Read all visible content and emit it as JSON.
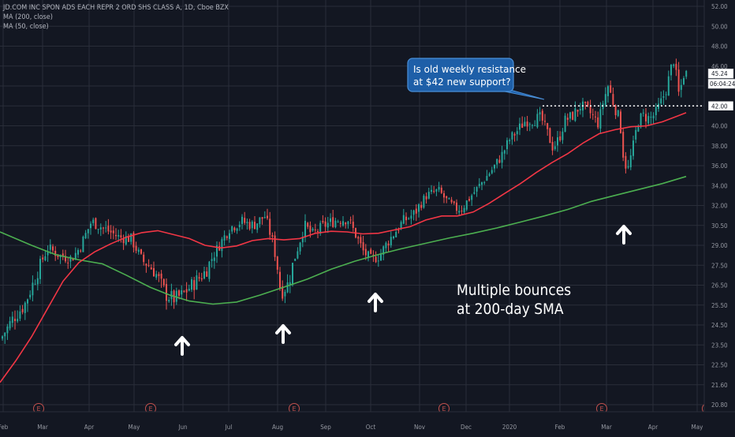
{
  "chart_data": {
    "type": "candlestick",
    "title": "JD.COM INC SPON ADS EACH REPR 2 ORD SHS CLASS A, 1D, Cboe BZX",
    "indicators": [
      "MA (200, close)",
      "MA (50, close)"
    ],
    "y_axis": {
      "ticks": [
        "52.00",
        "50.00",
        "48.00",
        "46.00",
        "44.00",
        "42.00",
        "40.00",
        "38.00",
        "36.00",
        "34.00",
        "32.00",
        "30.50",
        "29.00",
        "27.50",
        "26.50",
        "25.50",
        "24.50",
        "23.50",
        "22.50",
        "21.60",
        "20.80"
      ],
      "scale": "log",
      "ylim": [
        20.4,
        52.5
      ],
      "position": "right"
    },
    "x_axis": {
      "ticks": [
        "Feb",
        "Mar",
        "Apr",
        "May",
        "Jun",
        "Jul",
        "Aug",
        "Sep",
        "Oct",
        "Nov",
        "Dec",
        "2020",
        "Feb",
        "Mar",
        "Apr",
        "May"
      ]
    },
    "price_labels": {
      "last_price": "45.24",
      "countdown": "06:04:24",
      "level": "42.00"
    },
    "resistance_level": 42.0,
    "annotations": {
      "callout": "Is old weekly resistance at $42 new support?",
      "callout_lines": [
        "Is old weekly resistance",
        "at $42 new support?"
      ],
      "bounces_lines": [
        "Multiple bounces",
        "at 200-day SMA"
      ]
    },
    "bounce_arrows": 4,
    "earnings_marker": "E",
    "earnings_markers": 6,
    "series_colors": {
      "up": "#26a69a",
      "down": "#ef5350",
      "ma200": "#4caf50",
      "ma50": "#f23645"
    },
    "ma200": [
      [
        0,
        30.0
      ],
      [
        40,
        29.0
      ],
      [
        70,
        28.3
      ],
      [
        100,
        27.9
      ],
      [
        130,
        27.6
      ],
      [
        160,
        27.0
      ],
      [
        190,
        26.4
      ],
      [
        215,
        26.0
      ],
      [
        240,
        25.7
      ],
      [
        270,
        25.55
      ],
      [
        300,
        25.65
      ],
      [
        330,
        26.0
      ],
      [
        360,
        26.4
      ],
      [
        390,
        26.8
      ],
      [
        420,
        27.3
      ],
      [
        450,
        27.8
      ],
      [
        480,
        28.3
      ],
      [
        510,
        28.75
      ],
      [
        540,
        29.15
      ],
      [
        570,
        29.55
      ],
      [
        600,
        29.9
      ],
      [
        630,
        30.3
      ],
      [
        660,
        30.75
      ],
      [
        690,
        31.2
      ],
      [
        720,
        31.7
      ],
      [
        750,
        32.4
      ],
      [
        780,
        33.0
      ],
      [
        810,
        33.6
      ],
      [
        840,
        34.2
      ],
      [
        870,
        34.9
      ]
    ],
    "ma50": [
      [
        0,
        21.7
      ],
      [
        20,
        22.7
      ],
      [
        40,
        23.9
      ],
      [
        60,
        25.3
      ],
      [
        80,
        26.7
      ],
      [
        100,
        27.7
      ],
      [
        120,
        28.5
      ],
      [
        140,
        29.1
      ],
      [
        160,
        29.6
      ],
      [
        180,
        29.95
      ],
      [
        200,
        30.1
      ],
      [
        220,
        29.8
      ],
      [
        240,
        29.5
      ],
      [
        260,
        29.0
      ],
      [
        280,
        28.8
      ],
      [
        300,
        28.95
      ],
      [
        320,
        29.35
      ],
      [
        340,
        29.5
      ],
      [
        360,
        29.4
      ],
      [
        380,
        29.5
      ],
      [
        400,
        29.9
      ],
      [
        420,
        30.05
      ],
      [
        440,
        30.0
      ],
      [
        460,
        29.85
      ],
      [
        480,
        29.9
      ],
      [
        500,
        30.15
      ],
      [
        520,
        30.4
      ],
      [
        540,
        30.9
      ],
      [
        560,
        31.2
      ],
      [
        580,
        31.2
      ],
      [
        600,
        31.5
      ],
      [
        620,
        32.2
      ],
      [
        640,
        33.2
      ],
      [
        660,
        34.2
      ],
      [
        680,
        35.3
      ],
      [
        700,
        36.3
      ],
      [
        720,
        37.2
      ],
      [
        740,
        38.3
      ],
      [
        760,
        39.2
      ],
      [
        780,
        39.6
      ],
      [
        800,
        39.9
      ],
      [
        820,
        40.0
      ],
      [
        840,
        40.4
      ],
      [
        860,
        41.0
      ],
      [
        870,
        41.3
      ]
    ],
    "price_path": [
      [
        0,
        23.8
      ],
      [
        15,
        24.8
      ],
      [
        30,
        25.5
      ],
      [
        45,
        27.0
      ],
      [
        60,
        28.8
      ],
      [
        75,
        28.2
      ],
      [
        90,
        28.0
      ],
      [
        100,
        28.8
      ],
      [
        115,
        30.8
      ],
      [
        130,
        30.3
      ],
      [
        150,
        29.6
      ],
      [
        165,
        29.5
      ],
      [
        180,
        27.8
      ],
      [
        195,
        27.2
      ],
      [
        210,
        26.0
      ],
      [
        220,
        25.8
      ],
      [
        230,
        26.0
      ],
      [
        245,
        26.6
      ],
      [
        260,
        27.2
      ],
      [
        275,
        28.8
      ],
      [
        290,
        30.3
      ],
      [
        305,
        30.8
      ],
      [
        320,
        30.5
      ],
      [
        335,
        31.2
      ],
      [
        345,
        29.2
      ],
      [
        355,
        26.1
      ],
      [
        365,
        26.6
      ],
      [
        375,
        28.5
      ],
      [
        385,
        30.5
      ],
      [
        395,
        29.8
      ],
      [
        410,
        30.5
      ],
      [
        425,
        30.9
      ],
      [
        440,
        31.0
      ],
      [
        450,
        29.8
      ],
      [
        460,
        28.5
      ],
      [
        470,
        27.9
      ],
      [
        480,
        28.2
      ],
      [
        490,
        29.2
      ],
      [
        500,
        30.0
      ],
      [
        510,
        30.8
      ],
      [
        525,
        31.4
      ],
      [
        540,
        33.0
      ],
      [
        555,
        33.5
      ],
      [
        565,
        32.5
      ],
      [
        575,
        31.8
      ],
      [
        585,
        31.8
      ],
      [
        595,
        32.8
      ],
      [
        605,
        33.8
      ],
      [
        615,
        34.8
      ],
      [
        625,
        35.8
      ],
      [
        635,
        37.0
      ],
      [
        645,
        38.6
      ],
      [
        655,
        39.5
      ],
      [
        665,
        40.5
      ],
      [
        675,
        40.6
      ],
      [
        685,
        40.8
      ],
      [
        692,
        39.5
      ],
      [
        700,
        37.8
      ],
      [
        708,
        38.7
      ],
      [
        715,
        40.5
      ],
      [
        725,
        41.0
      ],
      [
        735,
        42.0
      ],
      [
        745,
        41.5
      ],
      [
        752,
        40.8
      ],
      [
        758,
        40.2
      ],
      [
        763,
        42.2
      ],
      [
        770,
        44.0
      ],
      [
        778,
        42.0
      ],
      [
        785,
        40.5
      ],
      [
        790,
        36.5
      ],
      [
        795,
        35.5
      ],
      [
        802,
        38.0
      ],
      [
        808,
        40.5
      ],
      [
        815,
        41.0
      ],
      [
        823,
        40.7
      ],
      [
        830,
        41.2
      ],
      [
        838,
        42.5
      ],
      [
        845,
        44.0
      ],
      [
        853,
        46.8
      ],
      [
        860,
        43.0
      ],
      [
        866,
        45.2
      ],
      [
        870,
        45.24
      ]
    ]
  }
}
